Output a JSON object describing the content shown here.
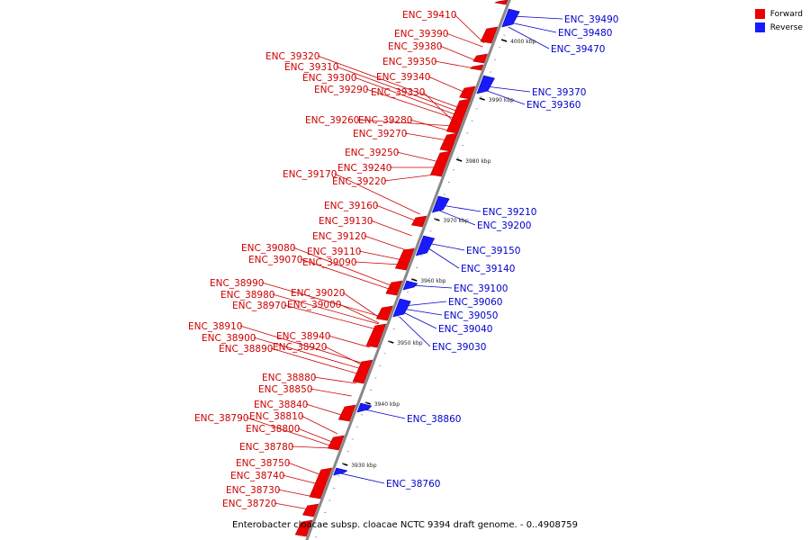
{
  "legend": [
    {
      "label": "Forward",
      "color": "#ee0000"
    },
    {
      "label": "Reverse",
      "color": "#1a1aff"
    }
  ],
  "footer": "Enterobacter cloacae subsp. cloacae NCTC 9394 draft genome. - 0..4908759",
  "ticks": [
    "4000 kbp",
    "3990 kbp",
    "3980 kbp",
    "3970 kbp",
    "3960 kbp",
    "3950 kbp",
    "3940 kbp",
    "3930 kbp"
  ],
  "forward_genes": [
    "ENC_39410",
    "ENC_39390",
    "ENC_39380",
    "ENC_39350",
    "ENC_39320",
    "ENC_39310",
    "ENC_39340",
    "ENC_39300",
    "ENC_39290",
    "ENC_39330",
    "ENC_39260",
    "ENC_39280",
    "ENC_39270",
    "ENC_39250",
    "ENC_39240",
    "ENC_39170",
    "ENC_39220",
    "ENC_39160",
    "ENC_39130",
    "ENC_39120",
    "ENC_39080",
    "ENC_39110",
    "ENC_39070",
    "ENC_39090",
    "ENC_38990",
    "ENC_39020",
    "ENC_38980",
    "ENC_38970",
    "ENC_39000",
    "ENC_38910",
    "ENC_38900",
    "ENC_38940",
    "ENC_38890",
    "ENC_38920",
    "ENC_38880",
    "ENC_38850",
    "ENC_38840",
    "ENC_38790",
    "ENC_38810",
    "ENC_38800",
    "ENC_38780",
    "ENC_38750",
    "ENC_38740",
    "ENC_38730",
    "ENC_38720"
  ],
  "reverse_genes": [
    "ENC_39490",
    "ENC_39480",
    "ENC_39470",
    "ENC_39370",
    "ENC_39360",
    "ENC_39210",
    "ENC_39200",
    "ENC_39150",
    "ENC_39140",
    "ENC_39100",
    "ENC_39060",
    "ENC_39050",
    "ENC_39040",
    "ENC_39030",
    "ENC_38860",
    "ENC_38760"
  ]
}
